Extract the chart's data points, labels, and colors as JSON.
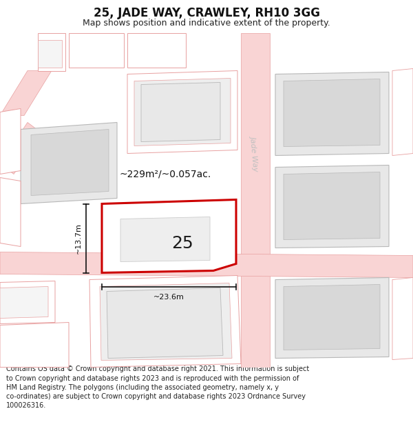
{
  "title": "25, JADE WAY, CRAWLEY, RH10 3GG",
  "subtitle": "Map shows position and indicative extent of the property.",
  "footer_lines": [
    "Contains OS data © Crown copyright and database right 2021. This information is subject to Crown copyright and database rights 2023 and is reproduced with the permission of",
    "HM Land Registry. The polygons (including the associated geometry, namely x, y co-ordinates) are subject to Crown copyright and database rights 2023 Ordnance Survey",
    "100026316."
  ],
  "area_label": "~229m²/~0.057ac.",
  "width_label": "~23.6m",
  "height_label": "~13.7m",
  "road_label_v": "Jade Way",
  "road_label_h": "Jade Way",
  "property_number": "25",
  "bg_color": "#ffffff",
  "map_bg": "#ffffff",
  "road_fill": "#f9d4d4",
  "road_edge": "#e8a0a0",
  "bld_fill_gray": "#e8e8e8",
  "bld_edge_gray": "#b8b8b8",
  "bld_edge_pink": "#e8a0a0",
  "prop_fill": "#ffffff",
  "prop_edge": "#cc0000",
  "dim_color": "#111111",
  "road_text_color": "#c0c0c0",
  "area_text_color": "#111111",
  "title_fontsize": 12,
  "subtitle_fontsize": 9,
  "footer_fontsize": 7,
  "number_fontsize": 18,
  "area_fontsize": 10,
  "dim_fontsize": 8
}
